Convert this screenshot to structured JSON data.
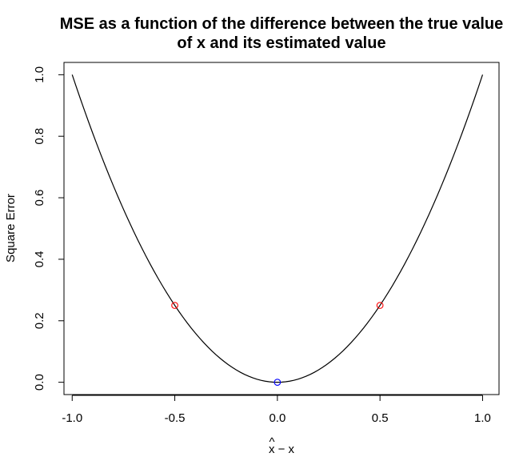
{
  "chart_data": {
    "type": "line",
    "title_lines": [
      "MSE as a function of the difference between the true value",
      "of x and its estimated value"
    ],
    "xlabel": {
      "hat": "^",
      "text": "x − x"
    },
    "ylabel": "Square Error",
    "xlim": [
      -1.04,
      1.08
    ],
    "ylim": [
      -0.04,
      1.04
    ],
    "x_ticks": [
      {
        "value": -1.0,
        "label": "-1.0"
      },
      {
        "value": -0.5,
        "label": "-0.5"
      },
      {
        "value": 0.0,
        "label": "0.0"
      },
      {
        "value": 0.5,
        "label": "0.5"
      },
      {
        "value": 1.0,
        "label": "1.0"
      }
    ],
    "y_ticks": [
      {
        "value": 0.0,
        "label": "0.0"
      },
      {
        "value": 0.2,
        "label": "0.2"
      },
      {
        "value": 0.4,
        "label": "0.4"
      },
      {
        "value": 0.6,
        "label": "0.6"
      },
      {
        "value": 0.8,
        "label": "0.8"
      },
      {
        "value": 1.0,
        "label": "1.0"
      }
    ],
    "curve": {
      "name": "square error",
      "formula": "y = x^2",
      "x_range": [
        -1.0,
        1.0
      ],
      "samples": 101,
      "color": "#000000"
    },
    "points": [
      {
        "x": -0.5,
        "y": 0.25,
        "color": "#ff0000"
      },
      {
        "x": 0.5,
        "y": 0.25,
        "color": "#ff0000"
      },
      {
        "x": 0.0,
        "y": 0.0,
        "color": "#0000ff"
      }
    ]
  }
}
